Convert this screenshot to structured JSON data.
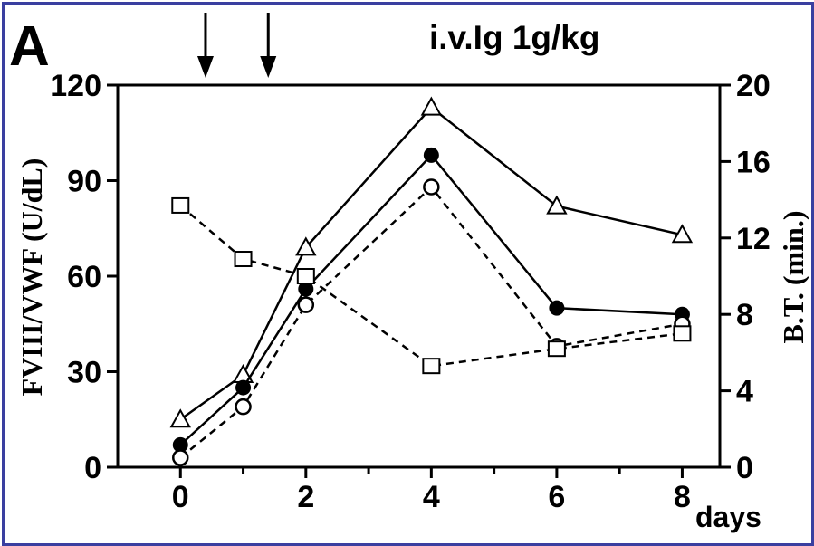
{
  "panel_label": "A",
  "treatment_label": "i.v.Ig 1g/kg",
  "treatment_days": [
    0.4,
    1.4
  ],
  "chart_data": {
    "type": "line",
    "title": "",
    "xlabel": "days",
    "ylabel_left": "FVIII/VWF (U/dL)",
    "ylabel_right": "B.T. (min.)",
    "x_ticks": [
      0,
      2,
      4,
      6,
      8
    ],
    "y_left_ticks": [
      0,
      30,
      60,
      90,
      120
    ],
    "y_right_ticks": [
      0,
      4,
      8,
      12,
      16,
      20
    ],
    "xlim": [
      -1,
      8.6
    ],
    "ylim_left": [
      0,
      120
    ],
    "ylim_right": [
      0,
      20
    ],
    "grid": false,
    "series": [
      {
        "marker": "open-triangle",
        "line": "solid",
        "axis": "left",
        "x": [
          0,
          1,
          2,
          4,
          6,
          8
        ],
        "y": [
          15,
          29,
          69,
          113,
          82,
          73
        ]
      },
      {
        "marker": "filled-circle",
        "line": "solid",
        "axis": "left",
        "x": [
          0,
          1,
          2,
          4,
          6,
          8
        ],
        "y": [
          7,
          25,
          56,
          98,
          50,
          48
        ]
      },
      {
        "marker": "open-circle",
        "line": "dashed",
        "axis": "left",
        "x": [
          0,
          1,
          2,
          4,
          6,
          8
        ],
        "y": [
          3,
          19,
          51,
          88,
          38,
          45
        ]
      },
      {
        "marker": "open-square",
        "line": "dashed",
        "axis": "right",
        "x": [
          0,
          1,
          2,
          4,
          6,
          8
        ],
        "y": [
          13.7,
          10.9,
          10.0,
          5.3,
          6.2,
          7.0
        ]
      }
    ]
  }
}
